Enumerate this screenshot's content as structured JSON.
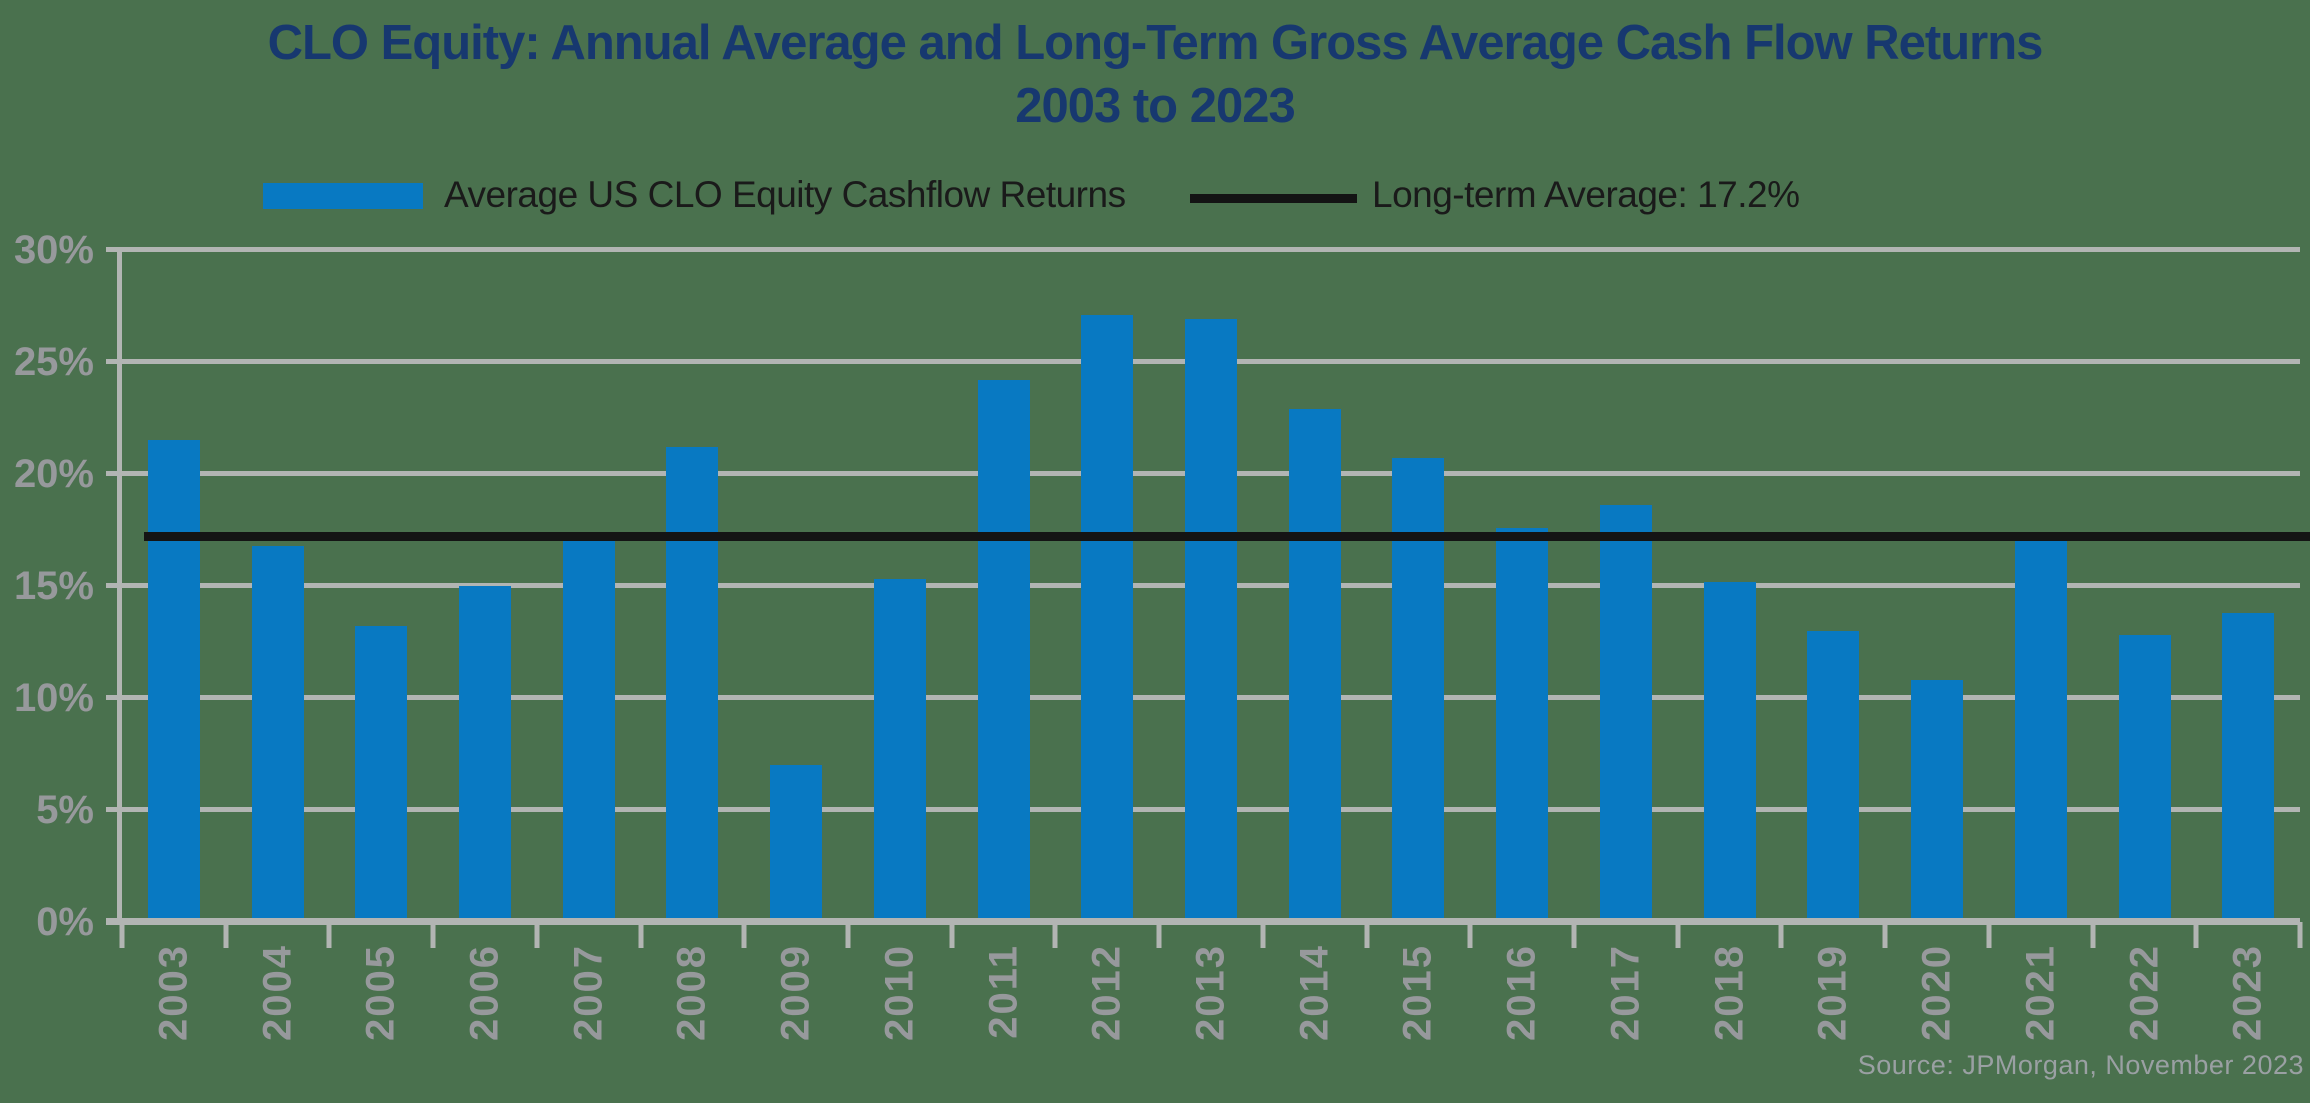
{
  "title": {
    "line1": "CLO Equity: Annual Average and Long-Term Gross Average Cash Flow Returns",
    "line2": "2003 to 2023"
  },
  "legend": {
    "bar_series": {
      "label": "Average US CLO Equity Cashflow Returns"
    },
    "reference_line": {
      "label": "Long-term Average: 17.2%"
    }
  },
  "source_note": "Source: JPMorgan, November 2023",
  "colors": {
    "background": "#4a714e",
    "bar_blue": "#0879c2",
    "title_navy": "#17386f",
    "grid_gray": "#b2b5b3",
    "text_gray": "#97999c",
    "line_black": "#141414",
    "source_gray": "#9aa0a3",
    "legend_text": "#1a1a1a"
  },
  "chart_data": {
    "type": "bar",
    "title": "CLO Equity: Annual Average and Long-Term Gross Average Cash Flow Returns 2003 to 2023",
    "series_name": "Average US CLO Equity Cashflow Returns",
    "categories": [
      "2003",
      "2004",
      "2005",
      "2006",
      "2007",
      "2008",
      "2009",
      "2010",
      "2011",
      "2012",
      "2013",
      "2014",
      "2015",
      "2016",
      "2017",
      "2018",
      "2019",
      "2020",
      "2021",
      "2022",
      "2023"
    ],
    "values": [
      21.5,
      16.8,
      13.2,
      15.0,
      17.3,
      21.2,
      7.0,
      15.3,
      24.2,
      27.1,
      26.9,
      22.9,
      20.7,
      17.6,
      18.6,
      15.2,
      13.0,
      10.8,
      17.3,
      12.8,
      13.8
    ],
    "reference_line": {
      "label": "Long-term Average: 17.2%",
      "value": 17.2
    },
    "y_ticks": [
      "0%",
      "5%",
      "10%",
      "15%",
      "20%",
      "25%",
      "30%"
    ],
    "ylim": [
      0,
      30
    ],
    "xlabel": "",
    "ylabel": "",
    "grid": true,
    "legend_position": "top"
  }
}
